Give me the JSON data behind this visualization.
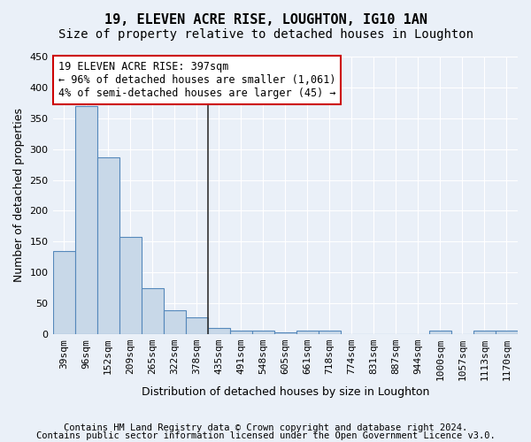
{
  "title1": "19, ELEVEN ACRE RISE, LOUGHTON, IG10 1AN",
  "title2": "Size of property relative to detached houses in Loughton",
  "xlabel": "Distribution of detached houses by size in Loughton",
  "ylabel": "Number of detached properties",
  "categories": [
    "39sqm",
    "96sqm",
    "152sqm",
    "209sqm",
    "265sqm",
    "322sqm",
    "378sqm",
    "435sqm",
    "491sqm",
    "548sqm",
    "605sqm",
    "661sqm",
    "718sqm",
    "774sqm",
    "831sqm",
    "887sqm",
    "944sqm",
    "1000sqm",
    "1057sqm",
    "1113sqm",
    "1170sqm"
  ],
  "values": [
    135,
    370,
    287,
    157,
    75,
    38,
    27,
    10,
    6,
    5,
    3,
    5,
    5,
    0,
    0,
    0,
    0,
    5,
    0,
    5,
    5
  ],
  "bar_color": "#c8d8e8",
  "bar_edge_color": "#5588bb",
  "vline_x_index": 6,
  "vline_color": "#333333",
  "ylim": [
    0,
    450
  ],
  "yticks": [
    0,
    50,
    100,
    150,
    200,
    250,
    300,
    350,
    400,
    450
  ],
  "annotation_line1": "19 ELEVEN ACRE RISE: 397sqm",
  "annotation_line2": "← 96% of detached houses are smaller (1,061)",
  "annotation_line3": "4% of semi-detached houses are larger (45) →",
  "annotation_box_color": "#ffffff",
  "annotation_box_edge_color": "#cc0000",
  "footer1": "Contains HM Land Registry data © Crown copyright and database right 2024.",
  "footer2": "Contains public sector information licensed under the Open Government Licence v3.0.",
  "background_color": "#eaf0f8",
  "grid_color": "#ffffff",
  "title1_fontsize": 11,
  "title2_fontsize": 10,
  "xlabel_fontsize": 9,
  "ylabel_fontsize": 9,
  "tick_fontsize": 8,
  "footer_fontsize": 7.5,
  "annotation_fontsize": 8.5
}
